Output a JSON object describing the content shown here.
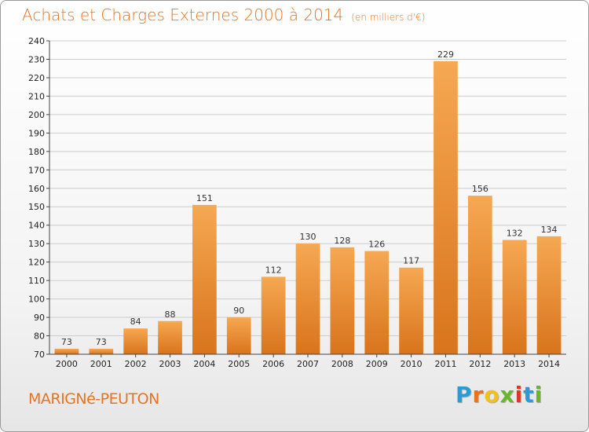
{
  "title": {
    "main": "Achats et Charges Externes 2000 à 2014",
    "unit": "(en milliers d'€)"
  },
  "commune": "MARIGNé-PEUTON",
  "logo": {
    "letters": [
      "P",
      "r",
      "o",
      "x",
      "i",
      "t",
      "i"
    ],
    "colors": [
      "#2a9ad8",
      "#e8731f",
      "#f2c11a",
      "#6bb52a",
      "#d83a2a",
      "#2a9ad8",
      "#6bb52a"
    ]
  },
  "colors": {
    "bar_light": "#f6a852",
    "bar_dark": "#d8741c",
    "grid": "#cccccc",
    "axis": "#444444"
  },
  "chart_data": {
    "type": "bar",
    "title": "Achats et Charges Externes 2000 à 2014",
    "xlabel": "",
    "ylabel": "",
    "ylim": [
      70,
      240
    ],
    "ytick_step": 10,
    "grid": true,
    "categories": [
      "2000",
      "2001",
      "2002",
      "2003",
      "2004",
      "2005",
      "2006",
      "2007",
      "2008",
      "2009",
      "2010",
      "2011",
      "2012",
      "2013",
      "2014"
    ],
    "values": [
      73,
      73,
      84,
      88,
      151,
      90,
      112,
      130,
      128,
      126,
      117,
      229,
      156,
      132,
      134
    ]
  }
}
